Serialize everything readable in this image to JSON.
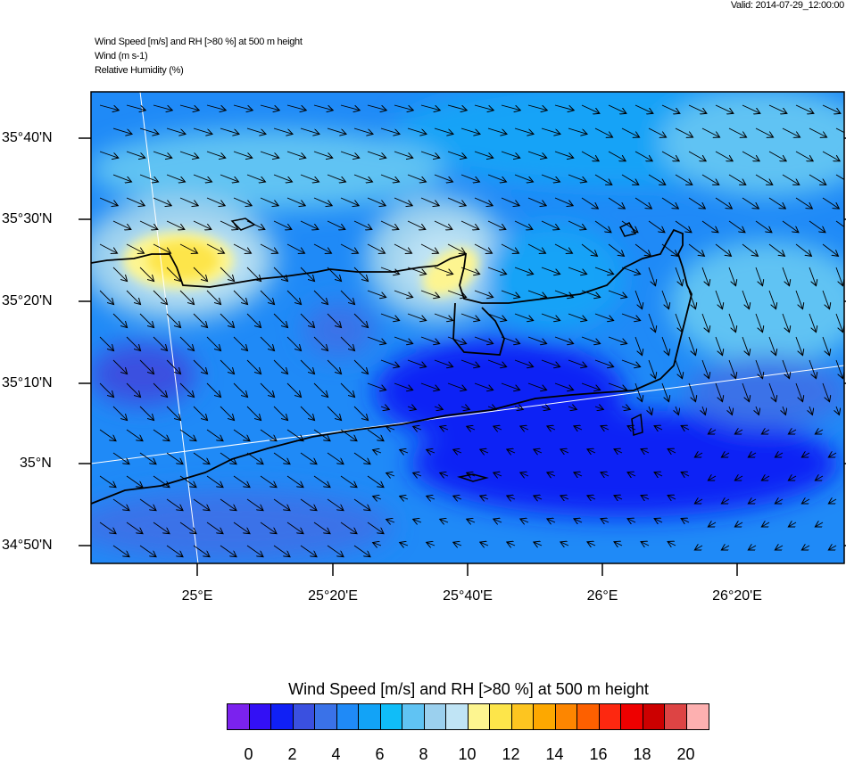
{
  "header": {
    "valid": "Valid: 2014-07-29_12:00:00",
    "title_lines": [
      "Wind Speed [m/s] and RH [>80 %] at 500 m height",
      "Wind   (m s-1)",
      "Relative Humidity   (%)"
    ]
  },
  "map": {
    "lat_labels": [
      "35°40'N",
      "35°30'N",
      "35°20'N",
      "35°10'N",
      "35°N",
      "34°50'N"
    ],
    "lon_labels": [
      "25°E",
      "25°20'E",
      "25°40'E",
      "26°E",
      "26°20'E"
    ],
    "field": "wind speed shaded with wind vectors, Crete coastline",
    "wind_direction": "mostly west-northwest to east-southeast, turning southerly/southwesterly south of the island"
  },
  "colorbar": {
    "title": "Wind Speed [m/s] and RH [>80 %] at 500 m height",
    "labels": [
      "0",
      "2",
      "4",
      "6",
      "8",
      "10",
      "12",
      "14",
      "16",
      "18",
      "20"
    ],
    "colors": [
      "#7b22ee",
      "#3310f5",
      "#1020f5",
      "#3a50e0",
      "#3a72e8",
      "#1f8af7",
      "#12a3f7",
      "#10bdf8",
      "#60c3f3",
      "#9bd0ee",
      "#c0e4f5",
      "#fdf590",
      "#fde54a",
      "#fdc520",
      "#fda800",
      "#fd8600",
      "#fd6000",
      "#fd2810",
      "#ee0000",
      "#cc0000",
      "#dd4444",
      "#fdb0b0"
    ]
  }
}
